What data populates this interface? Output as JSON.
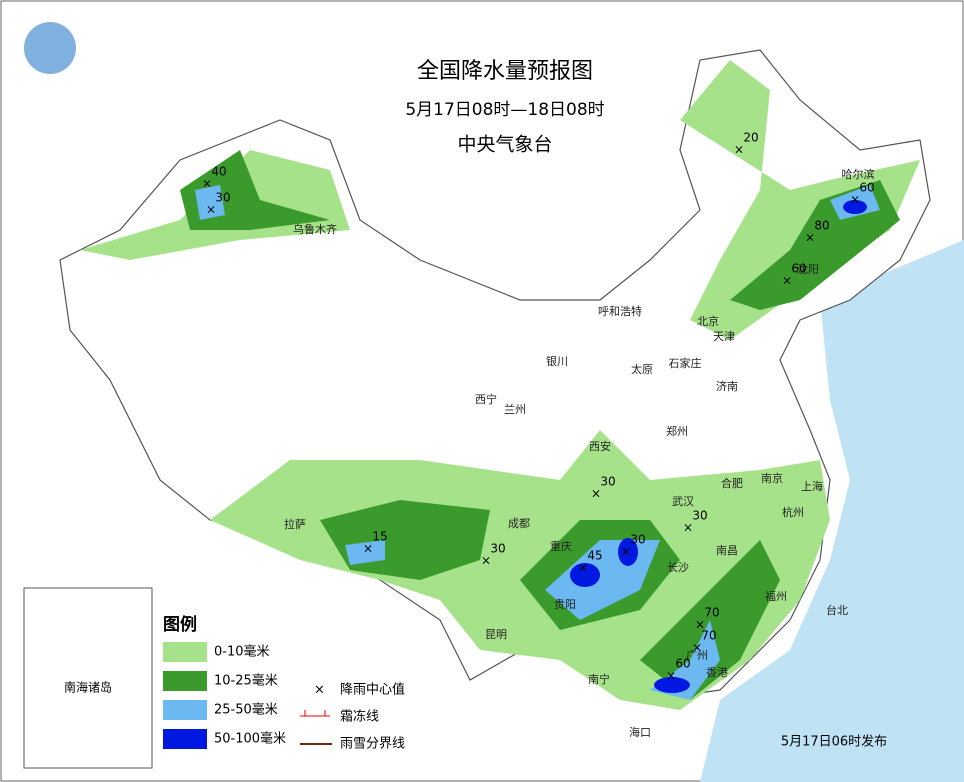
{
  "header": {
    "title": "全国降水量预报图",
    "period": "5月17日08时—18日08时",
    "issuer": "中央气象台"
  },
  "cities": [
    "乌鲁木齐",
    "哈尔滨",
    "沈阳",
    "北京",
    "天津",
    "呼和浩特",
    "银川",
    "太原",
    "石家庄",
    "济南",
    "西宁",
    "兰州",
    "西安",
    "郑州",
    "合肥",
    "南京",
    "上海",
    "武汉",
    "杭州",
    "成都",
    "重庆",
    "拉萨",
    "长沙",
    "南昌",
    "贵阳",
    "福州",
    "台北",
    "昆明",
    "南宁",
    "广州",
    "香港",
    "海口"
  ],
  "rain_centers": [
    40,
    30,
    20,
    60,
    30,
    30,
    15,
    30,
    45,
    30,
    70,
    70,
    60,
    60,
    80
  ],
  "inset": {
    "label": "南海诸岛"
  },
  "legend": {
    "title": "图例",
    "items": [
      "0-10毫米",
      "10-25毫米",
      "25-50毫米",
      "50-100毫米"
    ],
    "symbols": [
      "降雨中心值",
      "霜冻线",
      "雨雪分界线"
    ]
  },
  "footer": {
    "issued": "5月17日06时发布"
  }
}
